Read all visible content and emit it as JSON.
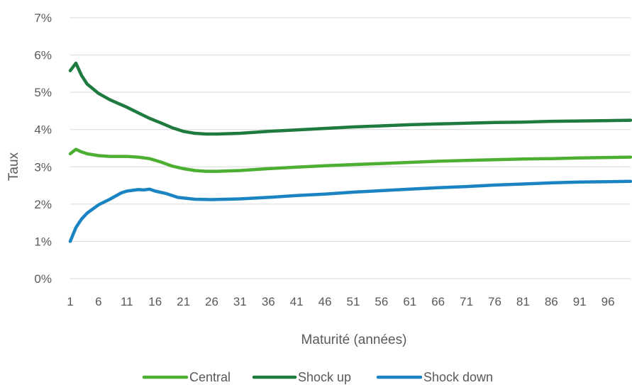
{
  "chart_data": {
    "type": "line",
    "xlabel": "Maturité (années)",
    "ylabel": "Taux",
    "x_tick_labels": [
      "1",
      "6",
      "11",
      "16",
      "21",
      "26",
      "31",
      "36",
      "41",
      "46",
      "51",
      "56",
      "61",
      "66",
      "71",
      "76",
      "81",
      "86",
      "91",
      "96"
    ],
    "y_tick_labels": [
      "0%",
      "1%",
      "2%",
      "3%",
      "4%",
      "5%",
      "6%",
      "7%"
    ],
    "ylim": [
      0,
      7
    ],
    "xlim": [
      1,
      100
    ],
    "y_unit": "%",
    "grid": true,
    "legend_position": "bottom",
    "series": [
      {
        "name": "Central",
        "color": "#4caf32",
        "points": [
          [
            1,
            3.35
          ],
          [
            2,
            3.47
          ],
          [
            3,
            3.4
          ],
          [
            4,
            3.35
          ],
          [
            6,
            3.3
          ],
          [
            8,
            3.28
          ],
          [
            11,
            3.28
          ],
          [
            13,
            3.26
          ],
          [
            15,
            3.22
          ],
          [
            17,
            3.13
          ],
          [
            19,
            3.02
          ],
          [
            21,
            2.95
          ],
          [
            23,
            2.9
          ],
          [
            25,
            2.88
          ],
          [
            27,
            2.88
          ],
          [
            31,
            2.9
          ],
          [
            36,
            2.95
          ],
          [
            41,
            2.99
          ],
          [
            46,
            3.03
          ],
          [
            51,
            3.06
          ],
          [
            56,
            3.09
          ],
          [
            61,
            3.12
          ],
          [
            66,
            3.15
          ],
          [
            71,
            3.17
          ],
          [
            76,
            3.19
          ],
          [
            81,
            3.21
          ],
          [
            86,
            3.22
          ],
          [
            91,
            3.24
          ],
          [
            96,
            3.25
          ],
          [
            100,
            3.26
          ]
        ]
      },
      {
        "name": "Shock up",
        "color": "#1f7a3f",
        "points": [
          [
            1,
            5.58
          ],
          [
            2,
            5.78
          ],
          [
            3,
            5.45
          ],
          [
            4,
            5.22
          ],
          [
            6,
            4.97
          ],
          [
            8,
            4.8
          ],
          [
            11,
            4.6
          ],
          [
            13,
            4.45
          ],
          [
            15,
            4.3
          ],
          [
            17,
            4.18
          ],
          [
            19,
            4.05
          ],
          [
            21,
            3.95
          ],
          [
            23,
            3.9
          ],
          [
            25,
            3.88
          ],
          [
            27,
            3.88
          ],
          [
            31,
            3.9
          ],
          [
            36,
            3.95
          ],
          [
            41,
            3.99
          ],
          [
            46,
            4.03
          ],
          [
            51,
            4.07
          ],
          [
            56,
            4.1
          ],
          [
            61,
            4.13
          ],
          [
            66,
            4.15
          ],
          [
            71,
            4.17
          ],
          [
            76,
            4.19
          ],
          [
            81,
            4.2
          ],
          [
            86,
            4.22
          ],
          [
            91,
            4.23
          ],
          [
            96,
            4.24
          ],
          [
            100,
            4.25
          ]
        ]
      },
      {
        "name": "Shock down",
        "color": "#1a83c2",
        "points": [
          [
            1,
            1.0
          ],
          [
            2,
            1.37
          ],
          [
            3,
            1.6
          ],
          [
            4,
            1.76
          ],
          [
            6,
            1.98
          ],
          [
            8,
            2.13
          ],
          [
            10,
            2.3
          ],
          [
            11,
            2.35
          ],
          [
            13,
            2.39
          ],
          [
            14,
            2.38
          ],
          [
            15,
            2.4
          ],
          [
            16,
            2.35
          ],
          [
            18,
            2.28
          ],
          [
            20,
            2.18
          ],
          [
            23,
            2.13
          ],
          [
            26,
            2.12
          ],
          [
            31,
            2.14
          ],
          [
            36,
            2.18
          ],
          [
            41,
            2.23
          ],
          [
            46,
            2.27
          ],
          [
            51,
            2.32
          ],
          [
            56,
            2.36
          ],
          [
            61,
            2.4
          ],
          [
            66,
            2.44
          ],
          [
            71,
            2.47
          ],
          [
            76,
            2.51
          ],
          [
            81,
            2.54
          ],
          [
            86,
            2.57
          ],
          [
            91,
            2.59
          ],
          [
            96,
            2.6
          ],
          [
            100,
            2.61
          ]
        ]
      }
    ]
  }
}
